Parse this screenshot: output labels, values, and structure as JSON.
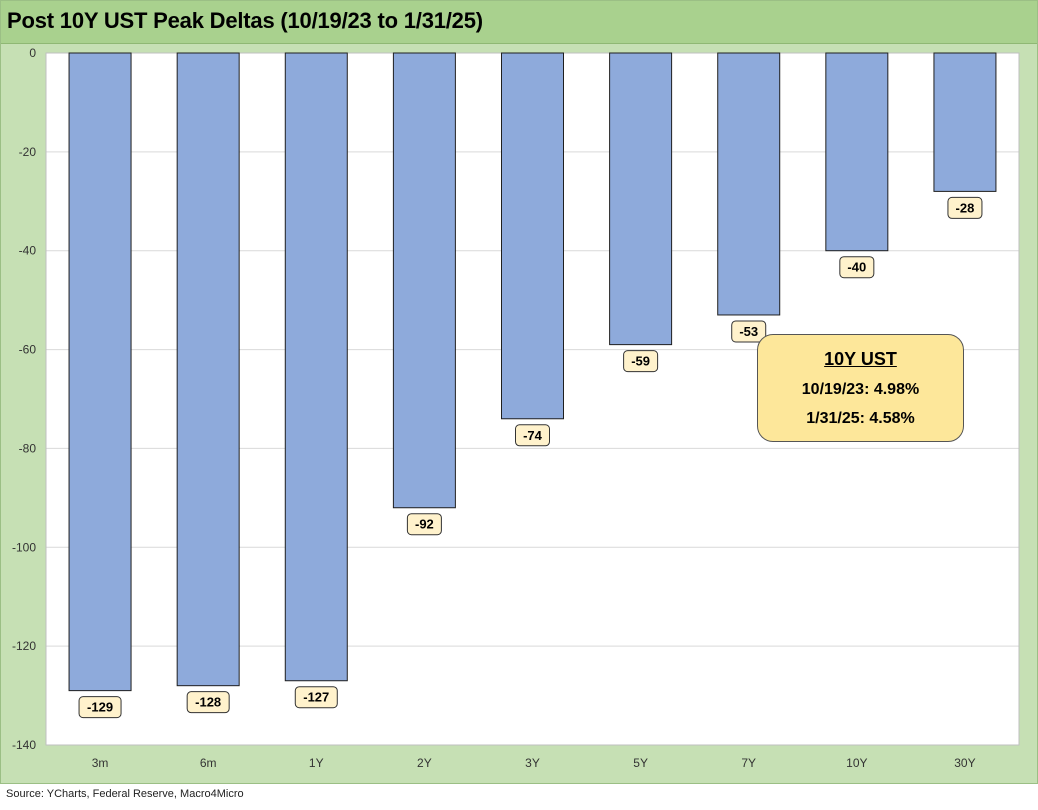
{
  "title": "Post 10Y UST Peak Deltas (10/19/23 to 1/31/25)",
  "source": "Source: YCharts, Federal Reserve, Macro4Micro",
  "callout": {
    "title": "10Y UST",
    "line1": "10/19/23: 4.98%",
    "line2": "1/31/25: 4.58%"
  },
  "colors": {
    "frame": "#c6e0b4",
    "title_bar": "#a9d18e",
    "bar_fill": "#8eaadb",
    "label_fill": "#fff2cc",
    "callout_fill": "#fde79a"
  },
  "chart_data": {
    "type": "bar",
    "categories": [
      "3m",
      "6m",
      "1Y",
      "2Y",
      "3Y",
      "5Y",
      "7Y",
      "10Y",
      "30Y"
    ],
    "values": [
      -129,
      -128,
      -127,
      -92,
      -74,
      -59,
      -53,
      -40,
      -28
    ],
    "data_labels": [
      "-129",
      "-128",
      "-127",
      "-92",
      "-74",
      "-59",
      "-53",
      "-40",
      "-28"
    ],
    "title": "Post 10Y UST Peak Deltas (10/19/23 to 1/31/25)",
    "xlabel": "",
    "ylabel": "",
    "ylim": [
      -140,
      0
    ],
    "yticks": [
      0,
      -20,
      -40,
      -60,
      -80,
      -100,
      -120,
      -140
    ],
    "ytick_labels": [
      "0",
      "-20",
      "-40",
      "-60",
      "-80",
      "-100",
      "-120",
      "-140"
    ],
    "grid": true,
    "legend": "none"
  }
}
